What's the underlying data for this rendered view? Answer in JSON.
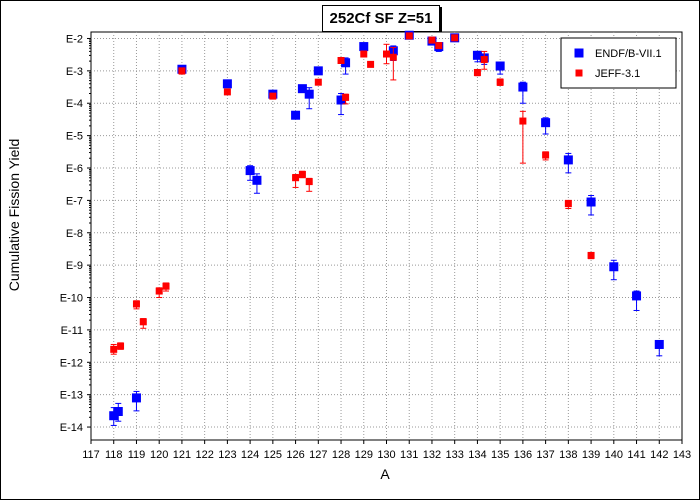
{
  "chart_data": {
    "type": "scatter",
    "title": "252Cf SF Z=51",
    "xlabel": "A",
    "ylabel": "Cumulative Fission Yield",
    "xlim": [
      117,
      143
    ],
    "ylim_log10": [
      -14.4,
      -1.8
    ],
    "log_scale_y": true,
    "grid": true,
    "legend_placement": "top-right",
    "x_ticks": [
      "117",
      "118",
      "119",
      "120",
      "121",
      "122",
      "123",
      "124",
      "125",
      "126",
      "127",
      "128",
      "129",
      "130",
      "131",
      "132",
      "133",
      "134",
      "135",
      "136",
      "137",
      "138",
      "139",
      "140",
      "141",
      "142",
      "143"
    ],
    "y_ticks": [
      {
        "label": "E-2",
        "exp": -2
      },
      {
        "label": "E-3",
        "exp": -3
      },
      {
        "label": "E-4",
        "exp": -4
      },
      {
        "label": "E-5",
        "exp": -5
      },
      {
        "label": "E-6",
        "exp": -6
      },
      {
        "label": "E-7",
        "exp": -7
      },
      {
        "label": "E-8",
        "exp": -8
      },
      {
        "label": "E-9",
        "exp": -9
      },
      {
        "label": "E-10",
        "exp": -10
      },
      {
        "label": "E-11",
        "exp": -11
      },
      {
        "label": "E-12",
        "exp": -12
      },
      {
        "label": "E-13",
        "exp": -13
      },
      {
        "label": "E-14",
        "exp": -14
      }
    ],
    "series": [
      {
        "name": "ENDF/B-VII.1",
        "color": "#0000ff",
        "marker": "square",
        "points": [
          {
            "x": 118.0,
            "log10y": -13.65,
            "err_up": 0.25,
            "err_down": 0.3
          },
          {
            "x": 118.2,
            "log10y": -13.52,
            "err_up": 0.25,
            "err_down": 0.3
          },
          {
            "x": 119.0,
            "log10y": -13.1,
            "err_up": 0.2,
            "err_down": 0.4
          },
          {
            "x": 121.0,
            "log10y": -2.95,
            "err_up": 0.05,
            "err_down": 0.05
          },
          {
            "x": 123.0,
            "log10y": -3.4,
            "err_up": 0.05,
            "err_down": 0.05
          },
          {
            "x": 124.0,
            "log10y": -6.08,
            "err_up": 0.15,
            "err_down": 0.3
          },
          {
            "x": 124.3,
            "log10y": -6.38,
            "err_up": 0.2,
            "err_down": 0.4
          },
          {
            "x": 125.0,
            "log10y": -3.72,
            "err_up": 0.05,
            "err_down": 0.05
          },
          {
            "x": 126.0,
            "log10y": -4.37,
            "err_up": 0.05,
            "err_down": 0.05
          },
          {
            "x": 126.3,
            "log10y": -3.55,
            "err_up": 0.05,
            "err_down": 0.05
          },
          {
            "x": 126.6,
            "log10y": -3.72,
            "err_up": 0.2,
            "err_down": 0.45
          },
          {
            "x": 127.0,
            "log10y": -3.0,
            "err_up": 0.05,
            "err_down": 0.05
          },
          {
            "x": 128.0,
            "log10y": -3.9,
            "err_up": 0.2,
            "err_down": 0.45
          },
          {
            "x": 128.2,
            "log10y": -2.75,
            "err_up": 0.15,
            "err_down": 0.35
          },
          {
            "x": 129.0,
            "log10y": -2.25,
            "err_up": 0.05,
            "err_down": 0.05
          },
          {
            "x": 130.3,
            "log10y": -2.38,
            "err_up": 0.15,
            "err_down": 0.3
          },
          {
            "x": 131.0,
            "log10y": -1.9,
            "err_up": 0.05,
            "err_down": 0.05
          },
          {
            "x": 132.0,
            "log10y": -2.08,
            "err_up": 0.1,
            "err_down": 0.1
          },
          {
            "x": 132.3,
            "log10y": -2.25,
            "err_up": 0.1,
            "err_down": 0.15
          },
          {
            "x": 133.0,
            "log10y": -1.98,
            "err_up": 0.05,
            "err_down": 0.05
          },
          {
            "x": 134.0,
            "log10y": -2.52,
            "err_up": 0.12,
            "err_down": 0.2
          },
          {
            "x": 134.3,
            "log10y": -2.6,
            "err_up": 0.12,
            "err_down": 0.2
          },
          {
            "x": 135.0,
            "log10y": -2.85,
            "err_up": 0.12,
            "err_down": 0.25
          },
          {
            "x": 136.0,
            "log10y": -3.5,
            "err_up": 0.15,
            "err_down": 0.5
          },
          {
            "x": 137.0,
            "log10y": -4.6,
            "err_up": 0.15,
            "err_down": 0.35
          },
          {
            "x": 138.0,
            "log10y": -5.75,
            "err_up": 0.2,
            "err_down": 0.4
          },
          {
            "x": 139.0,
            "log10y": -7.05,
            "err_up": 0.2,
            "err_down": 0.4
          },
          {
            "x": 140.0,
            "log10y": -9.05,
            "err_up": 0.2,
            "err_down": 0.4
          },
          {
            "x": 141.0,
            "log10y": -9.95,
            "err_up": 0.15,
            "err_down": 0.45
          },
          {
            "x": 142.0,
            "log10y": -11.45,
            "err_up": 0.1,
            "err_down": 0.35
          }
        ]
      },
      {
        "name": "JEFF-3.1",
        "color": "#ff0000",
        "marker": "square",
        "points": [
          {
            "x": 118.0,
            "log10y": -11.6,
            "err_up": 0.15,
            "err_down": 0.15
          },
          {
            "x": 118.3,
            "log10y": -11.5,
            "err_up": 0.1,
            "err_down": 0.1
          },
          {
            "x": 119.0,
            "log10y": -10.2,
            "err_up": 0.1,
            "err_down": 0.15
          },
          {
            "x": 119.3,
            "log10y": -10.75,
            "err_up": 0.1,
            "err_down": 0.2
          },
          {
            "x": 120.0,
            "log10y": -9.8,
            "err_up": 0.1,
            "err_down": 0.2
          },
          {
            "x": 120.3,
            "log10y": -9.65,
            "err_up": 0.1,
            "err_down": 0.15
          },
          {
            "x": 121.0,
            "log10y": -3.0,
            "err_up": 0.05,
            "err_down": 0.1
          },
          {
            "x": 123.0,
            "log10y": -3.65,
            "err_up": 0.05,
            "err_down": 0.05
          },
          {
            "x": 125.0,
            "log10y": -3.78,
            "err_up": 0.05,
            "err_down": 0.05
          },
          {
            "x": 126.0,
            "log10y": -6.3,
            "err_up": 0.1,
            "err_down": 0.3
          },
          {
            "x": 126.3,
            "log10y": -6.2,
            "err_up": 0.1,
            "err_down": 0.1
          },
          {
            "x": 126.6,
            "log10y": -6.42,
            "err_up": 0.1,
            "err_down": 0.3
          },
          {
            "x": 127.0,
            "log10y": -3.35,
            "err_up": 0.05,
            "err_down": 0.05
          },
          {
            "x": 128.0,
            "log10y": -2.68,
            "err_up": 0.05,
            "err_down": 0.05
          },
          {
            "x": 128.2,
            "log10y": -3.82,
            "err_up": 0.1,
            "err_down": 0.2
          },
          {
            "x": 129.0,
            "log10y": -2.48,
            "err_up": 0.05,
            "err_down": 0.05
          },
          {
            "x": 129.3,
            "log10y": -2.8,
            "err_up": 0.05,
            "err_down": 0.05
          },
          {
            "x": 130.0,
            "log10y": -2.48,
            "err_up": 0.3,
            "err_down": 0.3
          },
          {
            "x": 130.3,
            "log10y": -2.58,
            "err_up": 0.3,
            "err_down": 0.7
          },
          {
            "x": 131.0,
            "log10y": -1.92,
            "err_up": 0.05,
            "err_down": 0.05
          },
          {
            "x": 132.0,
            "log10y": -2.05,
            "err_up": 0.05,
            "err_down": 0.05
          },
          {
            "x": 132.3,
            "log10y": -2.22,
            "err_up": 0.05,
            "err_down": 0.05
          },
          {
            "x": 133.0,
            "log10y": -1.98,
            "err_up": 0.05,
            "err_down": 0.05
          },
          {
            "x": 134.0,
            "log10y": -3.05,
            "err_up": 0.05,
            "err_down": 0.1
          },
          {
            "x": 134.3,
            "log10y": -2.65,
            "err_up": 0.25,
            "err_down": 0.3
          },
          {
            "x": 135.0,
            "log10y": -3.35,
            "err_up": 0.1,
            "err_down": 0.1
          },
          {
            "x": 136.0,
            "log10y": -4.55,
            "err_up": 0.3,
            "err_down": 1.3
          },
          {
            "x": 137.0,
            "log10y": -5.6,
            "err_up": 0.1,
            "err_down": 0.15
          },
          {
            "x": 138.0,
            "log10y": -7.1,
            "err_up": 0.1,
            "err_down": 0.15
          },
          {
            "x": 139.0,
            "log10y": -8.7,
            "err_up": 0.05,
            "err_down": 0.1
          }
        ]
      }
    ]
  }
}
